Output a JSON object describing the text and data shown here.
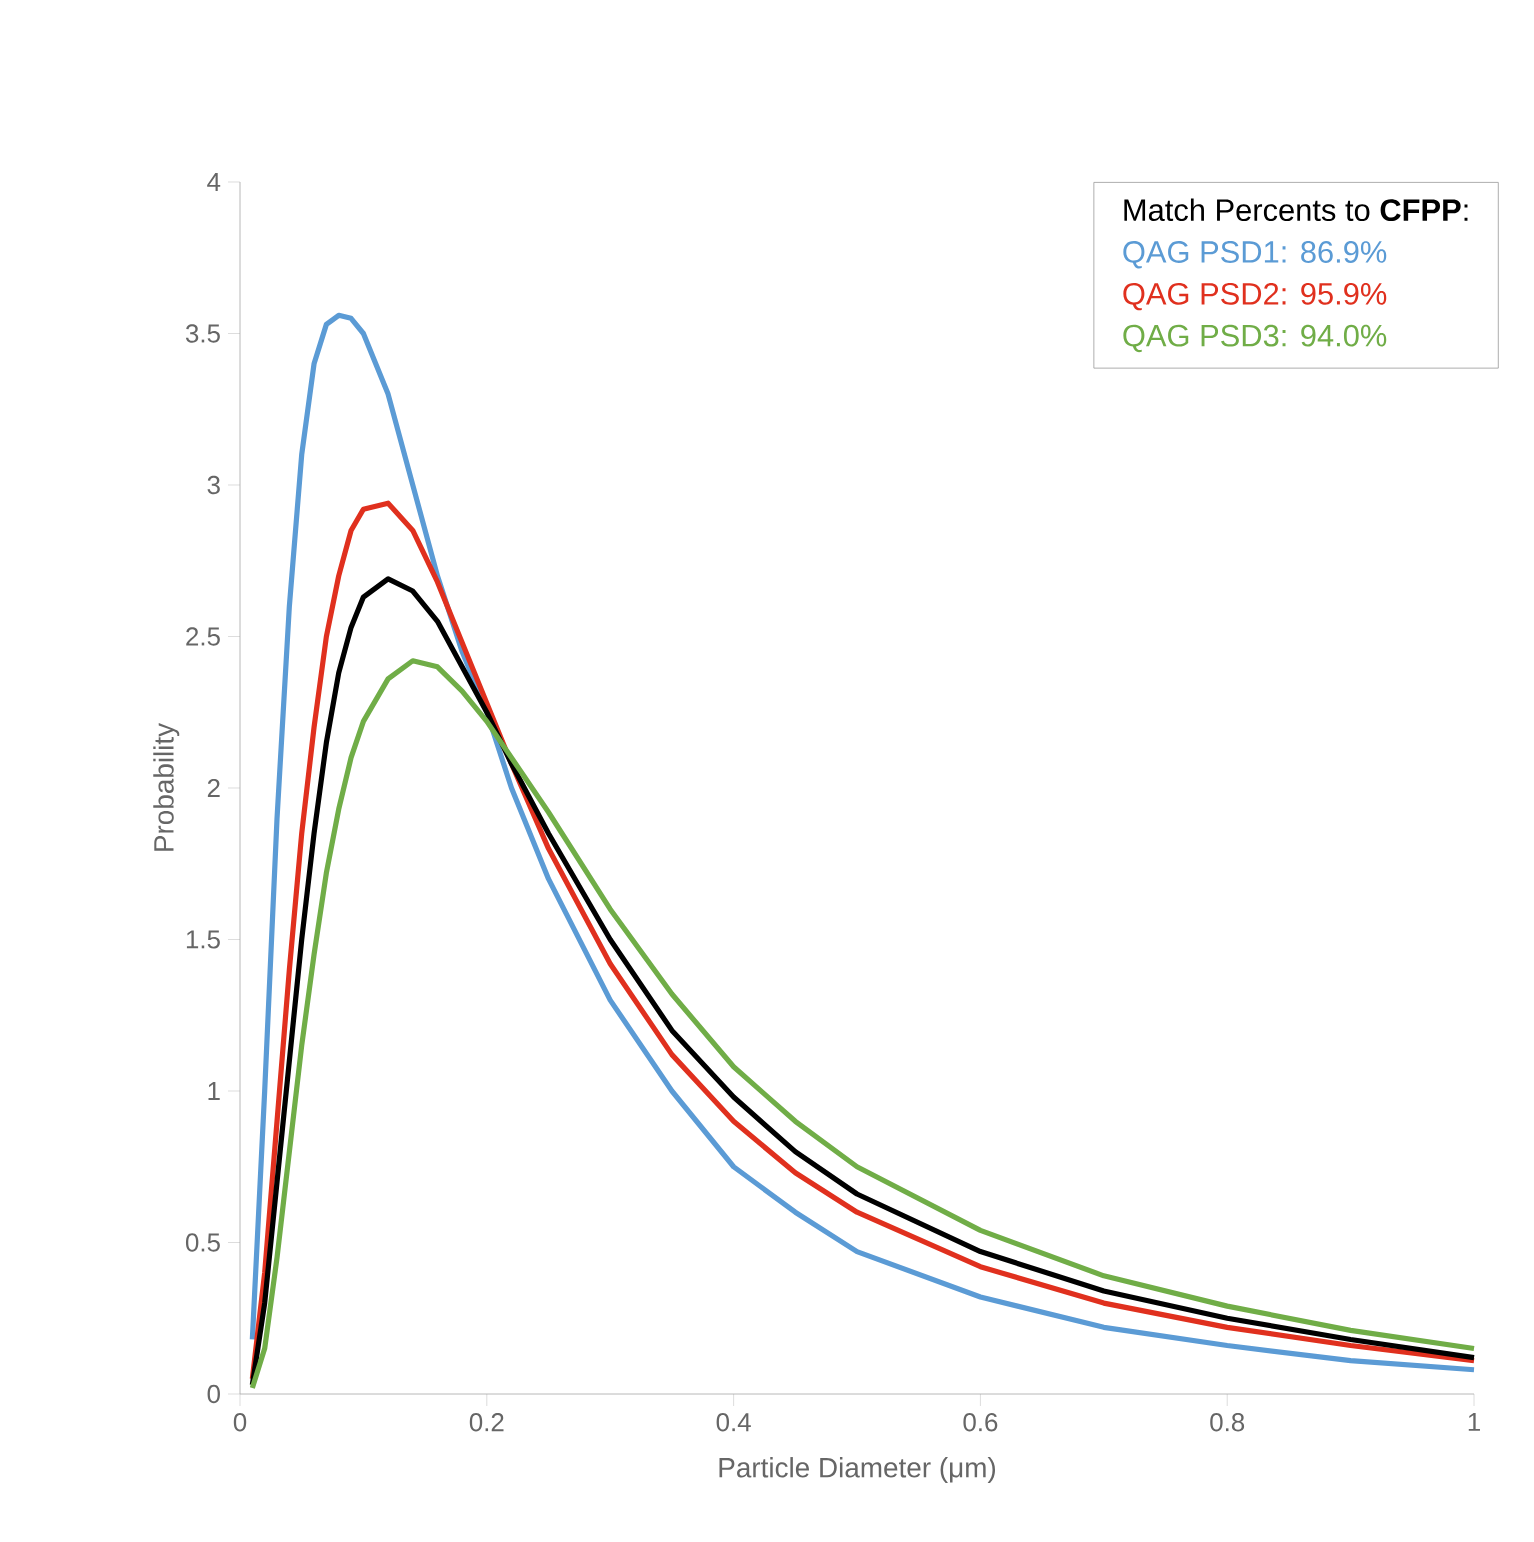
{
  "chart_data": {
    "type": "line",
    "xlabel": "Particle Diameter (μm)",
    "ylabel": "Probability",
    "legend_title": "Match Percents to **CFPP**:",
    "legend": "top right",
    "marker": "none",
    "line_style": "solid",
    "grid": false,
    "xlim": [
      0,
      1
    ],
    "ylim": [
      0,
      4
    ],
    "xticks": [
      0,
      0.2,
      0.4,
      0.6,
      0.8,
      1
    ],
    "yticks": [
      0,
      0.5,
      1,
      1.5,
      2,
      2.5,
      3,
      3.5,
      4
    ],
    "x": [
      0.01,
      0.02,
      0.03,
      0.04,
      0.05,
      0.06,
      0.07,
      0.08,
      0.09,
      0.1,
      0.12,
      0.14,
      0.16,
      0.18,
      0.2,
      0.22,
      0.25,
      0.3,
      0.35,
      0.4,
      0.45,
      0.5,
      0.6,
      0.7,
      0.8,
      0.9,
      1.0
    ],
    "series": [
      {
        "name": "QAG PSD1: 86.9%",
        "color": "#5b9bd5",
        "values": [
          0.18,
          1.0,
          1.9,
          2.6,
          3.1,
          3.4,
          3.53,
          3.56,
          3.55,
          3.5,
          3.3,
          3.0,
          2.7,
          2.45,
          2.25,
          2.0,
          1.7,
          1.3,
          1.0,
          0.75,
          0.6,
          0.47,
          0.32,
          0.22,
          0.16,
          0.11,
          0.08
        ]
      },
      {
        "name": "QAG PSD2: 95.9%",
        "color": "#e0301e",
        "values": [
          0.05,
          0.4,
          0.9,
          1.4,
          1.85,
          2.2,
          2.5,
          2.7,
          2.85,
          2.92,
          2.94,
          2.85,
          2.68,
          2.48,
          2.28,
          2.08,
          1.8,
          1.42,
          1.12,
          0.9,
          0.73,
          0.6,
          0.42,
          0.3,
          0.22,
          0.16,
          0.11
        ]
      },
      {
        "color": "#000000",
        "values": [
          0.03,
          0.3,
          0.7,
          1.1,
          1.5,
          1.85,
          2.15,
          2.38,
          2.53,
          2.63,
          2.69,
          2.65,
          2.55,
          2.4,
          2.25,
          2.08,
          1.85,
          1.5,
          1.2,
          0.98,
          0.8,
          0.66,
          0.47,
          0.34,
          0.25,
          0.18,
          0.12
        ]
      },
      {
        "name": "QAG PSD3: 94.0%",
        "color": "#70ad47",
        "values": [
          0.02,
          0.15,
          0.45,
          0.8,
          1.15,
          1.45,
          1.72,
          1.93,
          2.1,
          2.22,
          2.36,
          2.42,
          2.4,
          2.32,
          2.22,
          2.1,
          1.92,
          1.6,
          1.32,
          1.08,
          0.9,
          0.75,
          0.54,
          0.39,
          0.29,
          0.21,
          0.15
        ]
      }
    ]
  }
}
